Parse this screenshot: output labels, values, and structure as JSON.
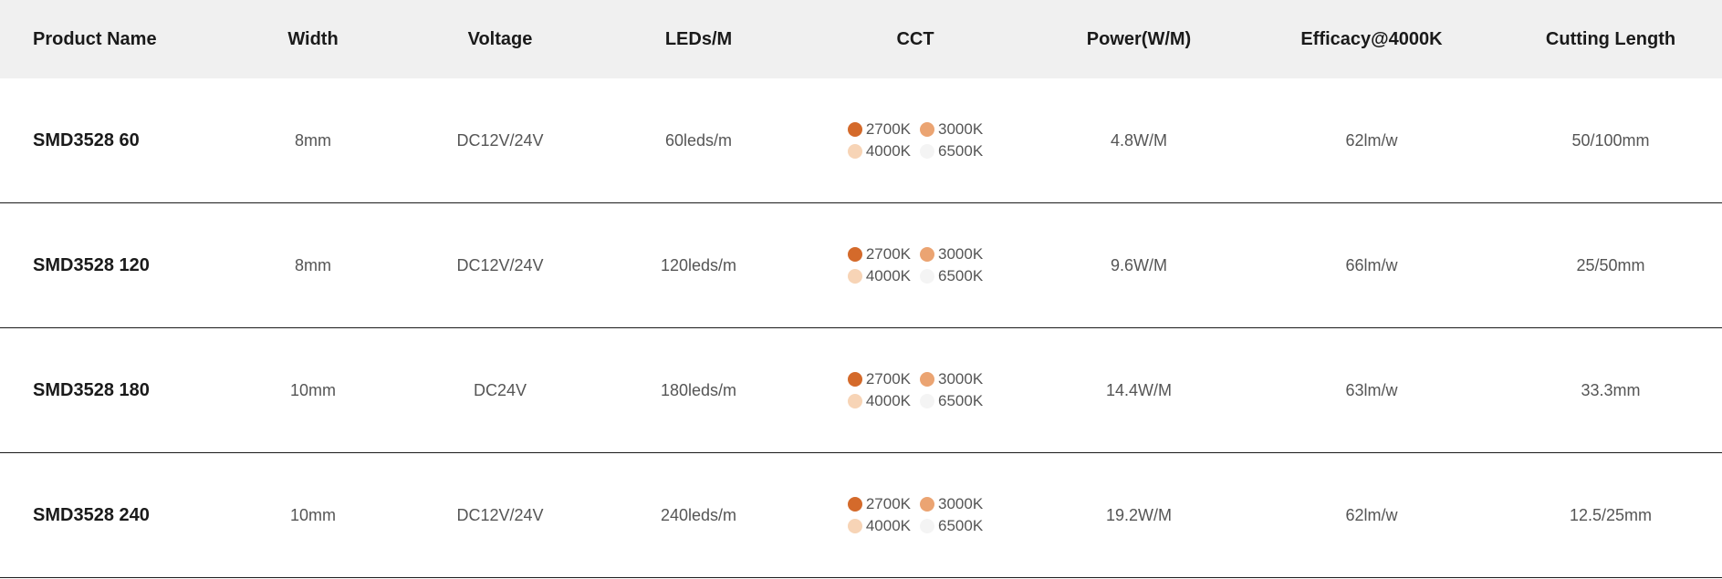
{
  "table": {
    "columns": [
      "Product Name",
      "Width",
      "Voltage",
      "LEDs/M",
      "CCT",
      "Power(W/M)",
      "Efficacy@4000K",
      "Cutting Length"
    ],
    "colors": {
      "header_bg": "#f0f0f0",
      "header_text": "#1a1a1a",
      "body_text": "#555555",
      "row_border": "#1a1a1a",
      "background": "#ffffff"
    },
    "cct_swatches": [
      {
        "label": "2700K",
        "color": "#d46a2b"
      },
      {
        "label": "3000K",
        "color": "#eba472"
      },
      {
        "label": "4000K",
        "color": "#f7d4b6"
      },
      {
        "label": "6500K",
        "color": "#f4f4f4"
      }
    ],
    "rows": [
      {
        "name": "SMD3528 60",
        "width": "8mm",
        "voltage": "DC12V/24V",
        "leds": "60leds/m",
        "power": "4.8W/M",
        "efficacy": "62lm/w",
        "cutting": "50/100mm"
      },
      {
        "name": "SMD3528 120",
        "width": "8mm",
        "voltage": "DC12V/24V",
        "leds": "120leds/m",
        "power": "9.6W/M",
        "efficacy": "66lm/w",
        "cutting": "25/50mm"
      },
      {
        "name": "SMD3528 180",
        "width": "10mm",
        "voltage": "DC24V",
        "leds": "180leds/m",
        "power": "14.4W/M",
        "efficacy": "63lm/w",
        "cutting": "33.3mm"
      },
      {
        "name": "SMD3528 240",
        "width": "10mm",
        "voltage": "DC12V/24V",
        "leds": "240leds/m",
        "power": "19.2W/M",
        "efficacy": "62lm/w",
        "cutting": "12.5/25mm"
      }
    ]
  }
}
